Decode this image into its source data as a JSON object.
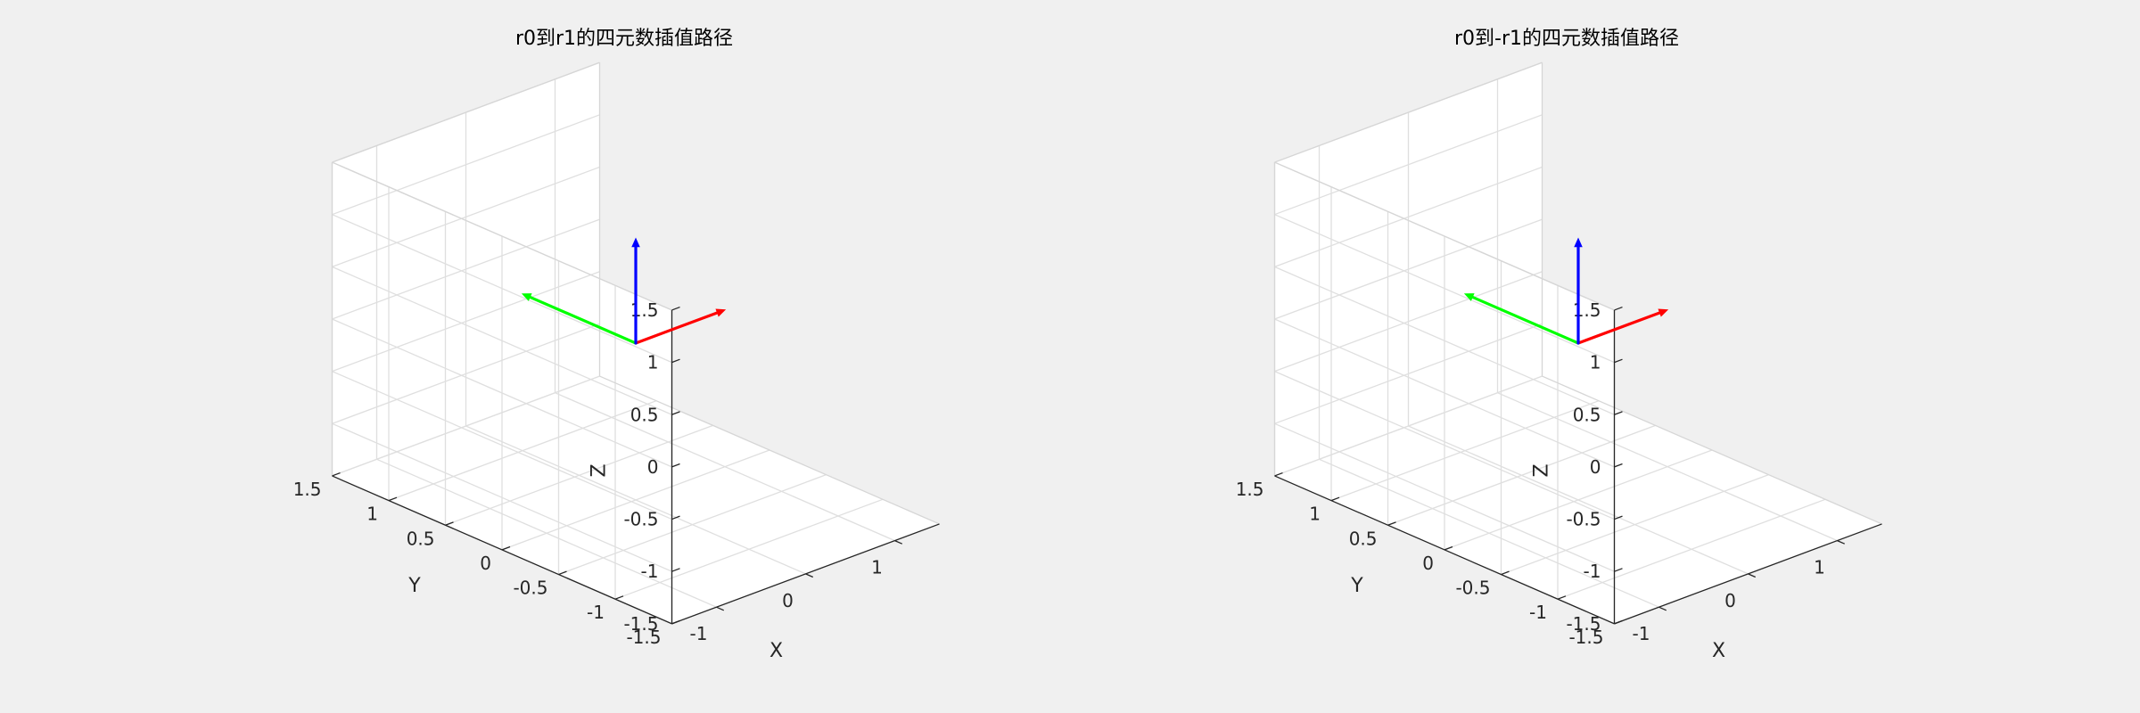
{
  "figure": {
    "background": "#f0f0f0"
  },
  "chart_data": [
    {
      "type": "3d-quiver",
      "title": "r0到r1的四元数插值路径",
      "xlabel": "X",
      "ylabel": "Y",
      "zlabel": "Z",
      "xlim": [
        -1.5,
        1.5
      ],
      "ylim": [
        -1.5,
        1.5
      ],
      "zlim": [
        -1.5,
        1.5
      ],
      "xticks": [
        "-1",
        "0",
        "1"
      ],
      "yticks": [
        "-1.5",
        "-1",
        "-0.5",
        "0",
        "0.5",
        "1",
        "1.5"
      ],
      "zticks": [
        "-1.5",
        "-1",
        "-0.5",
        "0",
        "0.5",
        "1",
        "1.5"
      ],
      "grid": true,
      "colors": {
        "x": "#ff0000",
        "y": "#00ff00",
        "z": "#0000ff"
      },
      "arrows": [
        {
          "name": "x-axis",
          "color": "#ff0000",
          "from": [
            0,
            0,
            0
          ],
          "to": [
            1,
            0,
            0
          ]
        },
        {
          "name": "y-axis",
          "color": "#00ff00",
          "from": [
            0,
            0,
            0
          ],
          "to": [
            0,
            1,
            0
          ]
        },
        {
          "name": "z-axis",
          "color": "#0000ff",
          "from": [
            0,
            0,
            0
          ],
          "to": [
            0,
            0,
            1
          ]
        }
      ]
    },
    {
      "type": "3d-quiver",
      "title": "r0到-r1的四元数插值路径",
      "xlabel": "X",
      "ylabel": "Y",
      "zlabel": "Z",
      "xlim": [
        -1.5,
        1.5
      ],
      "ylim": [
        -1.5,
        1.5
      ],
      "zlim": [
        -1.5,
        1.5
      ],
      "xticks": [
        "-1",
        "0",
        "1"
      ],
      "yticks": [
        "-1.5",
        "-1",
        "-0.5",
        "0",
        "0.5",
        "1",
        "1.5"
      ],
      "zticks": [
        "-1.5",
        "-1",
        "-0.5",
        "0",
        "0.5",
        "1",
        "1.5"
      ],
      "grid": true,
      "colors": {
        "x": "#ff0000",
        "y": "#00ff00",
        "z": "#0000ff"
      },
      "arrows": [
        {
          "name": "x-axis",
          "color": "#ff0000",
          "from": [
            0,
            0,
            0
          ],
          "to": [
            1,
            0,
            0
          ]
        },
        {
          "name": "y-axis",
          "color": "#00ff00",
          "from": [
            0,
            0,
            0
          ],
          "to": [
            0,
            1,
            0
          ]
        },
        {
          "name": "z-axis",
          "color": "#0000ff",
          "from": [
            0,
            0,
            0
          ],
          "to": [
            0,
            0,
            1
          ]
        }
      ]
    }
  ]
}
